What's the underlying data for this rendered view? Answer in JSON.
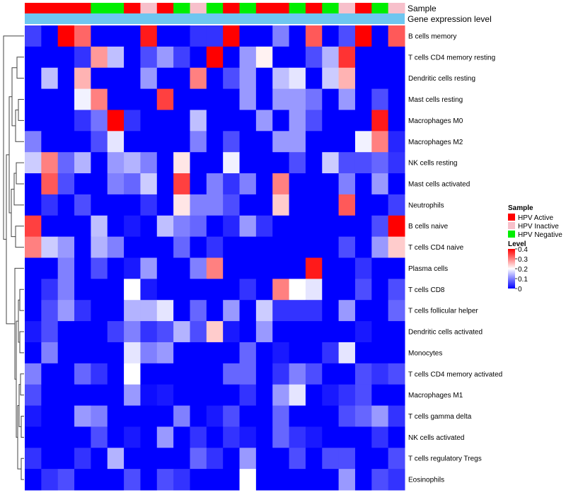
{
  "chart_data": {
    "type": "heatmap",
    "annotations": {
      "sample_label": "Sample",
      "gene_label": "Gene expression level",
      "sample_groups": [
        "HPV Active",
        "HPV Active",
        "HPV Active",
        "HPV Active",
        "HPV Negative",
        "HPV Negative",
        "HPV Active",
        "HPV Inactive",
        "HPV Active",
        "HPV Negative",
        "HPV Inactive",
        "HPV Negative",
        "HPV Active",
        "HPV Negative",
        "HPV Active",
        "HPV Active",
        "HPV Negative",
        "HPV Active",
        "HPV Negative",
        "HPV Inactive",
        "HPV Active",
        "HPV Negative",
        "HPV Inactive"
      ],
      "gene_expression_color": "#6ec6f0"
    },
    "rows": [
      "B cells memory",
      "T cells CD4 memory resting",
      "Dendritic cells resting",
      "Mast cells resting",
      "Macrophages M0",
      "Macrophages M2",
      "NK cells resting",
      "Mast cells activated",
      "Neutrophils",
      "B cells naive",
      "T cells CD4 naive",
      "Plasma cells",
      "T cells CD8",
      "T cells follicular helper",
      "Dendritic cells activated",
      "Monocytes",
      "T cells CD4 memory activated",
      "Macrophages M1",
      "T cells gamma delta",
      "NK cells activated",
      "T cells regulatory  Tregs",
      "Eosinophils"
    ],
    "values": [
      [
        0.05,
        0,
        0.4,
        0.32,
        0,
        0,
        0,
        0.38,
        0,
        0,
        0.04,
        0.04,
        0.4,
        0,
        0,
        0.1,
        0,
        0.33,
        0,
        0.06,
        0.4,
        0,
        0.33
      ],
      [
        0,
        0,
        0,
        0.04,
        0.28,
        0.15,
        0,
        0.06,
        0.12,
        0.05,
        0,
        0.4,
        0,
        0.12,
        0.21,
        0,
        0,
        0.06,
        0.14,
        0.36,
        0,
        0,
        0
      ],
      [
        0,
        0.15,
        0,
        0.26,
        0,
        0,
        0,
        0.12,
        0,
        0,
        0.3,
        0,
        0.06,
        0.12,
        0,
        0.15,
        0.18,
        0,
        0.16,
        0.26,
        0,
        0,
        0
      ],
      [
        0,
        0,
        0,
        0.19,
        0.3,
        0,
        0,
        0,
        0.35,
        0,
        0,
        0,
        0,
        0.12,
        0,
        0.12,
        0.12,
        0.09,
        0,
        0.12,
        0,
        0.06,
        0
      ],
      [
        0,
        0,
        0,
        0.04,
        0.09,
        0.4,
        0.04,
        0,
        0,
        0,
        0.15,
        0,
        0,
        0,
        0.12,
        0,
        0.12,
        0.06,
        0,
        0,
        0,
        0.38,
        0
      ],
      [
        0.1,
        0,
        0,
        0,
        0.06,
        0.18,
        0,
        0,
        0,
        0,
        0.1,
        0,
        0.06,
        0,
        0,
        0.12,
        0.12,
        0,
        0,
        0,
        0.19,
        0.3,
        0.03
      ],
      [
        0.16,
        0.3,
        0.08,
        0.14,
        0,
        0.12,
        0.14,
        0.1,
        0,
        0.22,
        0,
        0,
        0.19,
        0,
        0,
        0,
        0.06,
        0,
        0.16,
        0.06,
        0.06,
        0.08,
        0.04
      ],
      [
        0,
        0.33,
        0.06,
        0,
        0,
        0.1,
        0.08,
        0.16,
        0,
        0.35,
        0,
        0.1,
        0.04,
        0.1,
        0,
        0.3,
        0,
        0,
        0,
        0.1,
        0,
        0.12,
        0
      ],
      [
        0,
        0.04,
        0,
        0.06,
        0,
        0,
        0,
        0.04,
        0,
        0.22,
        0.1,
        0.1,
        0.06,
        0,
        0,
        0.24,
        0,
        0,
        0,
        0.33,
        0,
        0,
        0.05
      ],
      [
        0.35,
        0,
        0,
        0,
        0.15,
        0,
        0.02,
        0,
        0.15,
        0.1,
        0.08,
        0,
        0.03,
        0.12,
        0.04,
        0,
        0,
        0,
        0,
        0,
        0,
        0.06,
        0.4
      ],
      [
        0.3,
        0.16,
        0.12,
        0,
        0.14,
        0.1,
        0,
        0,
        0,
        0.08,
        0,
        0.04,
        0,
        0,
        0,
        0,
        0,
        0,
        0,
        0.06,
        0,
        0.12,
        0.24
      ],
      [
        0,
        0,
        0.1,
        0,
        0.06,
        0,
        0.02,
        0.12,
        0,
        0,
        0.1,
        0.3,
        0,
        0,
        0,
        0,
        0,
        0.38,
        0,
        0,
        0.04,
        0,
        0
      ],
      [
        0,
        0.04,
        0.1,
        0,
        0,
        0,
        0.2,
        0.02,
        0,
        0,
        0,
        0,
        0,
        0.04,
        0,
        0.3,
        0.2,
        0.18,
        0,
        0,
        0.06,
        0,
        0.06
      ],
      [
        0,
        0.06,
        0.12,
        0.04,
        0,
        0,
        0.14,
        0.14,
        0.18,
        0,
        0.08,
        0,
        0.12,
        0,
        0.16,
        0.04,
        0.04,
        0.04,
        0,
        0.12,
        0,
        0,
        0.08
      ],
      [
        0.02,
        0.06,
        0,
        0,
        0,
        0.05,
        0.1,
        0.04,
        0.06,
        0.14,
        0.06,
        0.24,
        0.02,
        0,
        0.12,
        0,
        0,
        0,
        0,
        0,
        0.02,
        0,
        0
      ],
      [
        0,
        0.1,
        0,
        0,
        0,
        0,
        0.18,
        0.1,
        0.12,
        0,
        0,
        0,
        0,
        0.08,
        0,
        0.02,
        0,
        0,
        0.04,
        0.18,
        0,
        0,
        0
      ],
      [
        0.1,
        0,
        0,
        0.08,
        0.04,
        0,
        0.2,
        0,
        0,
        0,
        0,
        0,
        0.08,
        0.08,
        0,
        0.04,
        0.1,
        0.06,
        0,
        0,
        0.06,
        0.04,
        0.06
      ],
      [
        0.06,
        0,
        0,
        0,
        0,
        0,
        0.12,
        0.01,
        0.02,
        0,
        0,
        0,
        0,
        0.04,
        0,
        0.12,
        0.18,
        0,
        0.02,
        0.04,
        0.06,
        0,
        0
      ],
      [
        0.02,
        0,
        0,
        0.12,
        0.1,
        0,
        0,
        0,
        0,
        0.1,
        0,
        0.02,
        0.06,
        0,
        0,
        0.08,
        0,
        0,
        0,
        0.06,
        0.08,
        0.12,
        0.04
      ],
      [
        0,
        0,
        0,
        0,
        0.06,
        0,
        0.02,
        0,
        0.12,
        0,
        0.04,
        0,
        0.04,
        0.02,
        0,
        0.08,
        0.04,
        0.02,
        0,
        0,
        0,
        0.04,
        0
      ],
      [
        0.04,
        0,
        0,
        0.04,
        0,
        0.14,
        0,
        0,
        0,
        0,
        0.08,
        0.04,
        0,
        0.12,
        0,
        0,
        0.06,
        0,
        0.06,
        0.06,
        0,
        0,
        0.06
      ],
      [
        0,
        0.04,
        0.06,
        0,
        0,
        0,
        0.06,
        0,
        0.06,
        0.04,
        0,
        0,
        0,
        0.2,
        0,
        0,
        0,
        0,
        0,
        0.12,
        0,
        0.06,
        0.04
      ]
    ],
    "legend": {
      "sample_title": "Sample",
      "sample_items": [
        {
          "label": "HPV Active",
          "color": "#ff0000"
        },
        {
          "label": "HPV Inactive",
          "color": "#f7c0cb"
        },
        {
          "label": "HPV Negative",
          "color": "#00ee00"
        }
      ],
      "level_title": "Level",
      "level_ticks": [
        "0.4",
        "0.3",
        "0.2",
        "0.1",
        "0"
      ],
      "level_range": [
        0,
        0.4
      ],
      "scale_colors": {
        "low": "#0000ff",
        "mid": "#ffffff",
        "high": "#ff0000"
      },
      "position": "right"
    }
  }
}
